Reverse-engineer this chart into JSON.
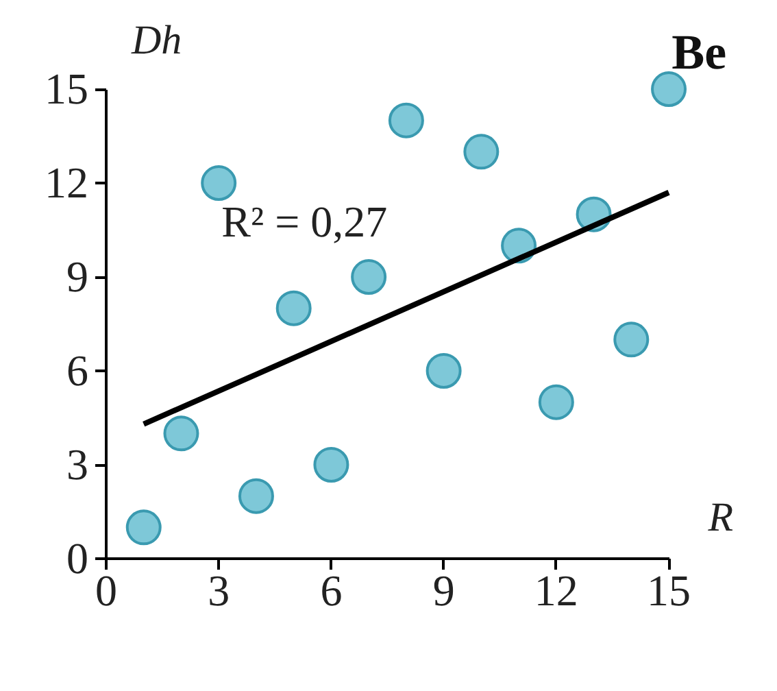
{
  "chart_data": {
    "type": "scatter",
    "title": "Be",
    "xlabel": "R",
    "ylabel": "Dh",
    "xlim": [
      0,
      15
    ],
    "ylim": [
      0,
      15
    ],
    "xticks": [
      0,
      3,
      6,
      9,
      12,
      15
    ],
    "yticks": [
      0,
      3,
      6,
      9,
      12,
      15
    ],
    "grid": false,
    "annotations": [
      "R² = 0,27"
    ],
    "series": [
      {
        "marker": "circle",
        "color": "#7ec8d8",
        "x": [
          1,
          2,
          3,
          4,
          5,
          6,
          7,
          8,
          9,
          10,
          11,
          12,
          13,
          14,
          15
        ],
        "values": [
          1,
          4,
          12,
          2,
          8,
          3,
          9,
          14,
          6,
          13,
          10,
          5,
          11,
          7,
          15
        ]
      },
      {
        "type": "line",
        "color": "#000000",
        "x": [
          1,
          15
        ],
        "values": [
          4.3,
          11.7
        ]
      }
    ]
  }
}
